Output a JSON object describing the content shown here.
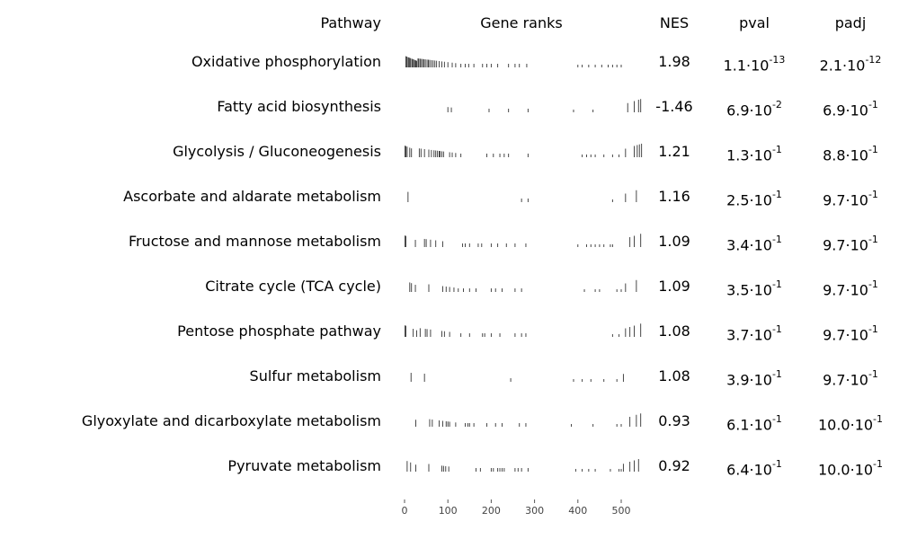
{
  "headers": {
    "pathway": "Pathway",
    "gene_ranks": "Gene ranks",
    "nes": "NES",
    "pval": "pval",
    "padj": "padj"
  },
  "chart_data": {
    "type": "table",
    "x_axis": {
      "ticks": [
        0,
        100,
        200,
        300,
        400,
        500
      ],
      "range": [
        0,
        550
      ]
    },
    "columns": [
      "Pathway",
      "Gene ranks",
      "NES",
      "pval",
      "padj"
    ],
    "rows": [
      {
        "pathway": "Oxidative phosphorylation",
        "nes": "1.98",
        "pval_m": "1.1·10",
        "pval_e": "-13",
        "padj_m": "2.1·10",
        "padj_e": "-12",
        "ranks": [
          3,
          5,
          8,
          10,
          12,
          14,
          17,
          19,
          21,
          24,
          26,
          28,
          31,
          33,
          36,
          39,
          42,
          45,
          48,
          52,
          55,
          58,
          62,
          66,
          70,
          74,
          80,
          86,
          92,
          100,
          110,
          118,
          130,
          140,
          148,
          160,
          180,
          190,
          200,
          215,
          240,
          255,
          265,
          282,
          400,
          410,
          425,
          440,
          455,
          470,
          480,
          490,
          500
        ]
      },
      {
        "pathway": "Fatty acid biosynthesis",
        "nes": "-1.46",
        "pval_m": "6.9·10",
        "pval_e": "-2",
        "padj_m": "6.9·10",
        "padj_e": "-1",
        "ranks": [
          100,
          108,
          195,
          240,
          285,
          390,
          435,
          515,
          530,
          540,
          545
        ]
      },
      {
        "pathway": "Glycolysis / Gluconeogenesis",
        "nes": "1.21",
        "pval_m": "1.3·10",
        "pval_e": "-1",
        "padj_m": "8.8·10",
        "padj_e": "-1",
        "ranks": [
          1,
          3,
          6,
          12,
          16,
          34,
          38,
          46,
          56,
          62,
          68,
          72,
          76,
          80,
          82,
          86,
          90,
          104,
          110,
          118,
          130,
          190,
          205,
          220,
          230,
          240,
          285,
          410,
          420,
          430,
          440,
          460,
          480,
          495,
          510,
          530,
          537,
          542,
          547
        ]
      },
      {
        "pathway": "Ascorbate and aldarate metabolism",
        "nes": "1.16",
        "pval_m": "2.5·10",
        "pval_e": "-1",
        "padj_m": "9.7·10",
        "padj_e": "-1",
        "ranks": [
          8,
          270,
          285,
          480,
          510,
          535
        ]
      },
      {
        "pathway": "Fructose and mannose metabolism",
        "nes": "1.09",
        "pval_m": "3.4·10",
        "pval_e": "-1",
        "padj_m": "9.7·10",
        "padj_e": "-1",
        "ranks": [
          1,
          3,
          25,
          46,
          50,
          60,
          72,
          88,
          134,
          140,
          150,
          170,
          178,
          200,
          215,
          235,
          255,
          280,
          400,
          420,
          430,
          440,
          450,
          460,
          475,
          480,
          520,
          530,
          545
        ]
      },
      {
        "pathway": "Citrate cycle (TCA cycle)",
        "nes": "1.09",
        "pval_m": "3.5·10",
        "pval_e": "-1",
        "padj_m": "9.7·10",
        "padj_e": "-1",
        "ranks": [
          12,
          16,
          25,
          56,
          88,
          96,
          104,
          114,
          124,
          136,
          150,
          165,
          200,
          210,
          225,
          255,
          270,
          415,
          440,
          450,
          490,
          500,
          510,
          535
        ]
      },
      {
        "pathway": "Pentose phosphate pathway",
        "nes": "1.08",
        "pval_m": "3.7·10",
        "pval_e": "-1",
        "padj_m": "9.7·10",
        "padj_e": "-1",
        "ranks": [
          1,
          3,
          20,
          28,
          36,
          48,
          52,
          60,
          86,
          92,
          104,
          130,
          150,
          180,
          185,
          200,
          220,
          255,
          270,
          280,
          480,
          495,
          510,
          520,
          530,
          545
        ]
      },
      {
        "pathway": "Sulfur metabolism",
        "nes": "1.08",
        "pval_m": "3.9·10",
        "pval_e": "-1",
        "padj_m": "9.7·10",
        "padj_e": "-1",
        "ranks": [
          15,
          46,
          245,
          390,
          410,
          430,
          460,
          490,
          505
        ]
      },
      {
        "pathway": "Glyoxylate and dicarboxylate metabolism",
        "nes": "0.93",
        "pval_m": "6.1·10",
        "pval_e": "-1",
        "padj_m": "10.0·10",
        "padj_e": "-1",
        "ranks": [
          26,
          58,
          64,
          80,
          88,
          96,
          100,
          104,
          118,
          140,
          146,
          150,
          160,
          190,
          210,
          225,
          265,
          280,
          385,
          435,
          490,
          500,
          520,
          535,
          545
        ]
      },
      {
        "pathway": "Pyruvate metabolism",
        "nes": "0.92",
        "pval_m": "6.4·10",
        "pval_e": "-1",
        "padj_m": "10.0·10",
        "padj_e": "-1",
        "ranks": [
          6,
          14,
          26,
          56,
          86,
          90,
          95,
          102,
          165,
          175,
          200,
          205,
          215,
          220,
          225,
          230,
          255,
          262,
          270,
          285,
          395,
          410,
          425,
          440,
          475,
          495,
          500,
          505,
          520,
          530,
          540
        ]
      }
    ]
  }
}
